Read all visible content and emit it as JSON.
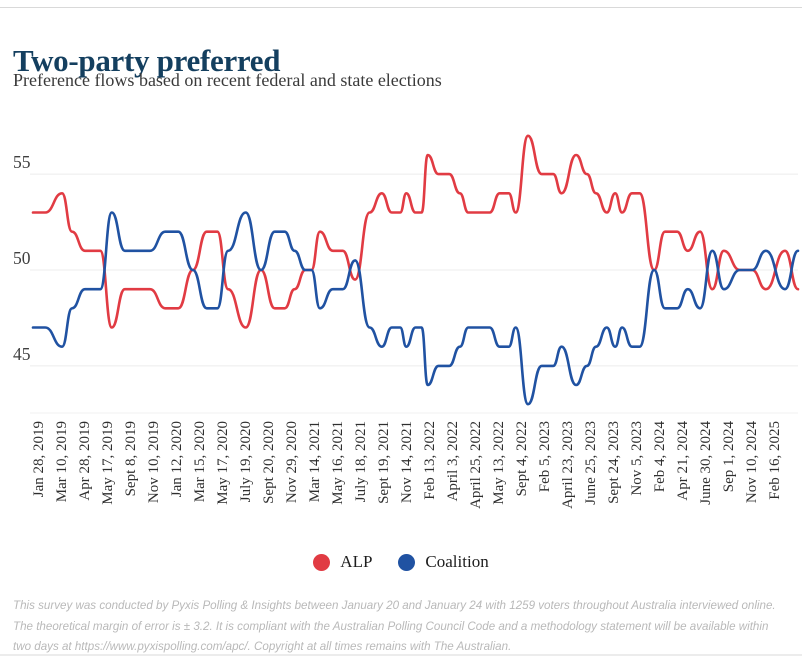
{
  "header": {
    "title": "Two-party preferred",
    "subtitle": "Preference flows based on recent federal and state elections"
  },
  "legend": {
    "items": [
      {
        "label": "ALP",
        "color": "#e13b43"
      },
      {
        "label": "Coalition",
        "color": "#2052a2"
      }
    ]
  },
  "footer": {
    "text": "This survey was conducted by Pyxis Polling & Insights between January 20 and January 24 with 1259 voters throughout Australia interviewed online. The theoretical margin of error is ± 3.2. It is compliant with the Australian Polling Council Code and a methodology statement will be available within two days at https://www.pyxispolling.com/apc/. Copyright at all times remains with The Australian."
  },
  "chart_data": {
    "type": "line",
    "title": "Two-party preferred",
    "xlabel": "",
    "ylabel": "",
    "grid": true,
    "legend_position": "bottom",
    "y_axis": {
      "ticks": [
        55,
        50,
        45
      ],
      "range": [
        42.8,
        57.5
      ]
    },
    "x_tick_labels": [
      "Jan 28, 2019",
      "Mar 10, 2019",
      "Apr 28, 2019",
      "May 17, 2019",
      "Sept 8, 2019",
      "Nov 10, 2019",
      "Jan 12, 2020",
      "Mar 15, 2020",
      "May 17, 2020",
      "July 19, 2020",
      "Sept 20, 2020",
      "Nov 29, 2020",
      "Mar 14, 2021",
      "May 16, 2021",
      "July 18, 2021",
      "Sept 19, 2021",
      "Nov 14, 2021",
      "Feb 13, 2022",
      "April 3, 2022",
      "April 25, 2022",
      "May 13, 2022",
      "Sept 4, 2022",
      "Feb 5, 2023",
      "April 23, 2023",
      "June 25, 2023",
      "Sept 24, 2023",
      "Nov 5, 2023",
      "Feb 4, 2024",
      "Apr 21, 2024",
      "June 30, 2024",
      "Sep 1, 2024",
      "Nov 10, 2024",
      "Feb 16, 2025"
    ],
    "series": [
      {
        "name": "ALP",
        "color": "#e13b43",
        "values_from": "polls.alp"
      },
      {
        "name": "Coalition",
        "color": "#2052a2",
        "values_from": "100 - polls.alp"
      }
    ],
    "polls_note": "t = fraction of x-axis; alp = ALP two-party-preferred %; Coalition = 100 - ALP",
    "polls": [
      [
        0.0,
        53
      ],
      [
        0.016,
        53
      ],
      [
        0.038,
        54
      ],
      [
        0.051,
        52
      ],
      [
        0.068,
        51
      ],
      [
        0.088,
        51
      ],
      [
        0.103,
        47
      ],
      [
        0.12,
        49
      ],
      [
        0.137,
        49
      ],
      [
        0.153,
        49
      ],
      [
        0.173,
        48
      ],
      [
        0.19,
        48
      ],
      [
        0.209,
        50
      ],
      [
        0.227,
        52
      ],
      [
        0.241,
        52
      ],
      [
        0.255,
        49
      ],
      [
        0.278,
        47
      ],
      [
        0.298,
        50
      ],
      [
        0.316,
        48
      ],
      [
        0.329,
        48
      ],
      [
        0.342,
        49
      ],
      [
        0.356,
        50
      ],
      [
        0.364,
        50
      ],
      [
        0.375,
        52
      ],
      [
        0.392,
        51
      ],
      [
        0.405,
        51
      ],
      [
        0.421,
        49.5
      ],
      [
        0.44,
        53
      ],
      [
        0.456,
        54
      ],
      [
        0.469,
        53
      ],
      [
        0.48,
        53
      ],
      [
        0.488,
        54
      ],
      [
        0.5,
        53
      ],
      [
        0.508,
        53
      ],
      [
        0.516,
        56
      ],
      [
        0.53,
        55
      ],
      [
        0.544,
        55
      ],
      [
        0.558,
        54
      ],
      [
        0.569,
        53
      ],
      [
        0.582,
        53
      ],
      [
        0.597,
        53
      ],
      [
        0.61,
        54
      ],
      [
        0.622,
        54
      ],
      [
        0.631,
        53
      ],
      [
        0.647,
        57
      ],
      [
        0.665,
        55
      ],
      [
        0.68,
        55
      ],
      [
        0.691,
        54
      ],
      [
        0.71,
        56
      ],
      [
        0.724,
        55
      ],
      [
        0.736,
        54
      ],
      [
        0.75,
        53
      ],
      [
        0.761,
        54
      ],
      [
        0.77,
        53
      ],
      [
        0.783,
        54
      ],
      [
        0.793,
        54
      ],
      [
        0.812,
        50
      ],
      [
        0.826,
        52
      ],
      [
        0.842,
        52
      ],
      [
        0.856,
        51
      ],
      [
        0.872,
        52
      ],
      [
        0.888,
        49
      ],
      [
        0.903,
        51
      ],
      [
        0.924,
        50
      ],
      [
        0.94,
        50
      ],
      [
        0.958,
        49
      ],
      [
        0.983,
        51
      ],
      [
        1.0,
        49
      ]
    ]
  }
}
